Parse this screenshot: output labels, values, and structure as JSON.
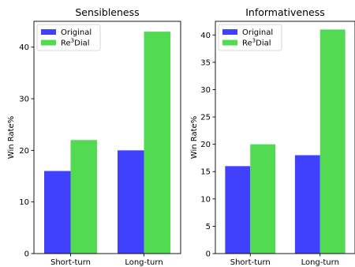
{
  "chart_data": [
    {
      "type": "bar",
      "title": "Sensibleness",
      "categories": [
        "Short-turn",
        "Long-turn"
      ],
      "series": [
        {
          "name": "Original",
          "values": [
            16,
            20
          ],
          "color": "#4040ff"
        },
        {
          "name": "Re3Dial",
          "values": [
            22,
            43
          ],
          "color": "#52db52"
        }
      ],
      "ylabel": "Win Rate%",
      "xlabel": "",
      "ylim": [
        0,
        45
      ],
      "yticks": [
        0,
        10,
        20,
        30,
        40
      ],
      "legend": "top-left",
      "grid": false
    },
    {
      "type": "bar",
      "title": "Informativeness",
      "categories": [
        "Short-turn",
        "Long-turn"
      ],
      "series": [
        {
          "name": "Original",
          "values": [
            16,
            18
          ],
          "color": "#4040ff"
        },
        {
          "name": "Re3Dial",
          "values": [
            20,
            41
          ],
          "color": "#52db52"
        }
      ],
      "ylabel": "Win Rate%",
      "xlabel": "",
      "ylim": [
        0,
        42.5
      ],
      "yticks": [
        0,
        5,
        10,
        15,
        20,
        25,
        30,
        35,
        40
      ],
      "legend": "top-left",
      "grid": false
    }
  ]
}
